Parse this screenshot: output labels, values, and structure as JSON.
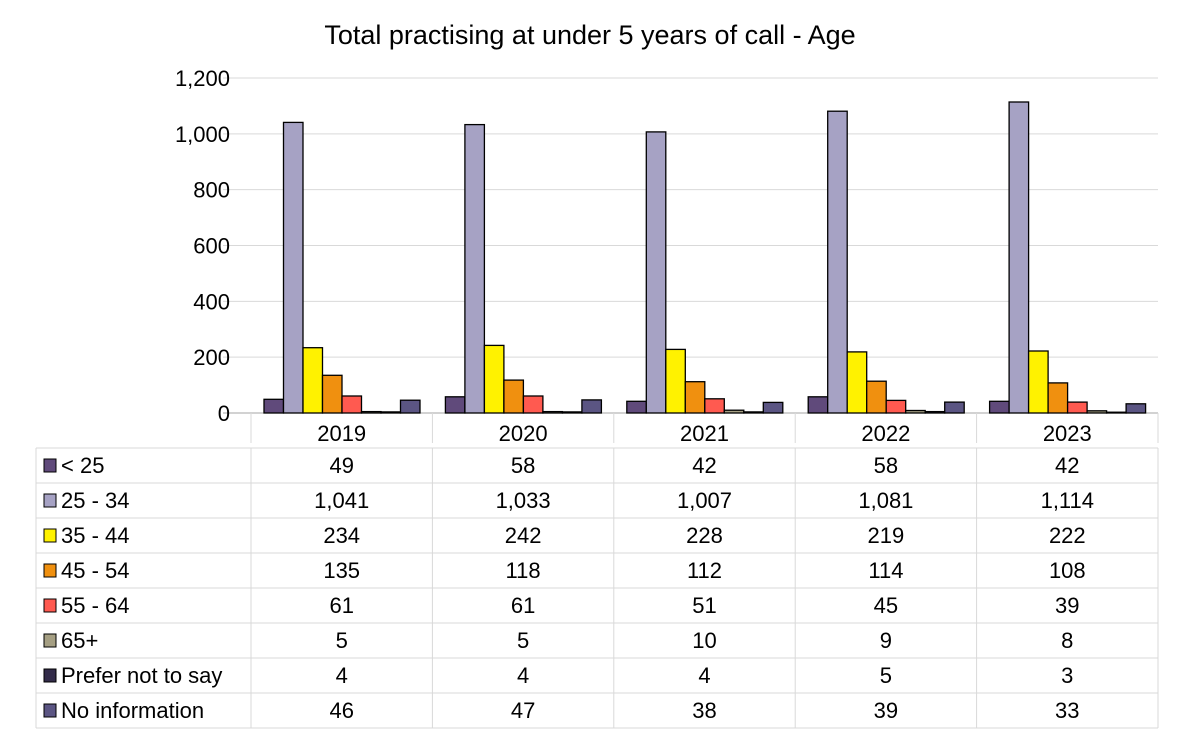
{
  "chart_data": {
    "type": "bar",
    "title": "Total practising at under 5 years of call - Age",
    "xlabel": "",
    "ylabel": "",
    "ylim": [
      0,
      1200
    ],
    "yticks": [
      0,
      200,
      400,
      600,
      800,
      1000,
      1200
    ],
    "ytick_labels": [
      "0",
      "200",
      "400",
      "600",
      "800",
      "1,000",
      "1,200"
    ],
    "grid": true,
    "legend": "data-table-below",
    "categories": [
      "2019",
      "2020",
      "2021",
      "2022",
      "2023"
    ],
    "series": [
      {
        "name": "< 25",
        "color": "#604A7B",
        "values": [
          49,
          58,
          42,
          58,
          42
        ],
        "labels": [
          "49",
          "58",
          "42",
          "58",
          "42"
        ]
      },
      {
        "name": "25 - 34",
        "color": "#A6A2C4",
        "values": [
          1041,
          1033,
          1007,
          1081,
          1114
        ],
        "labels": [
          "1,041",
          "1,033",
          "1,007",
          "1,081",
          "1,114"
        ]
      },
      {
        "name": "35 - 44",
        "color": "#FFF200",
        "values": [
          234,
          242,
          228,
          219,
          222
        ],
        "labels": [
          "234",
          "242",
          "228",
          "219",
          "222"
        ]
      },
      {
        "name": "45 - 54",
        "color": "#F0900F",
        "values": [
          135,
          118,
          112,
          114,
          108
        ],
        "labels": [
          "135",
          "118",
          "112",
          "114",
          "108"
        ]
      },
      {
        "name": "55 - 64",
        "color": "#FF5A50",
        "values": [
          61,
          61,
          51,
          45,
          39
        ],
        "labels": [
          "61",
          "61",
          "51",
          "45",
          "39"
        ]
      },
      {
        "name": "65+",
        "color": "#A59F83",
        "values": [
          5,
          5,
          10,
          9,
          8
        ],
        "labels": [
          "5",
          "5",
          "10",
          "9",
          "8"
        ]
      },
      {
        "name": "Prefer not to say",
        "color": "#332C4A",
        "values": [
          4,
          4,
          4,
          5,
          3
        ],
        "labels": [
          "4",
          "4",
          "4",
          "5",
          "3"
        ]
      },
      {
        "name": "No information",
        "color": "#5B5583",
        "values": [
          46,
          47,
          38,
          39,
          33
        ],
        "labels": [
          "46",
          "47",
          "38",
          "39",
          "33"
        ]
      }
    ]
  }
}
